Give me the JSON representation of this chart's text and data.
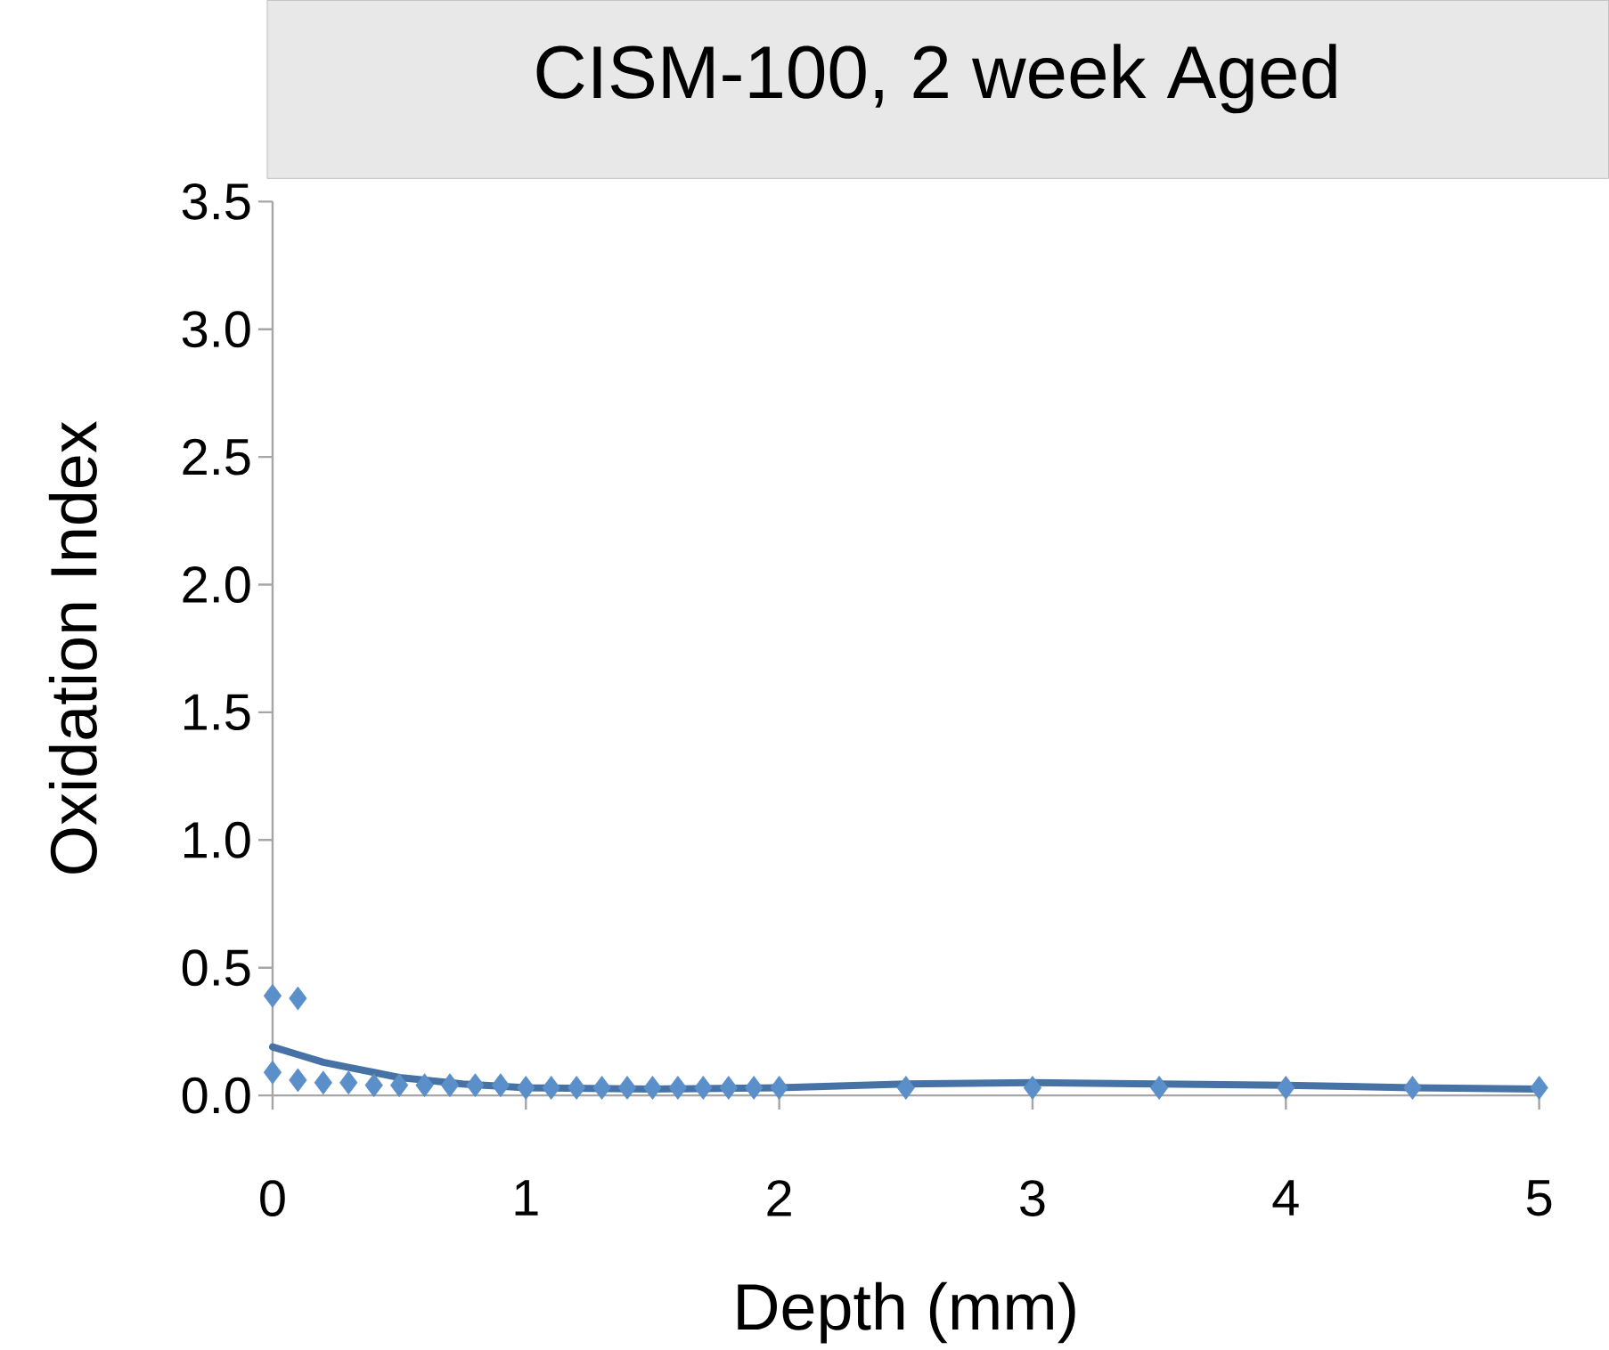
{
  "chart_data": {
    "type": "scatter",
    "title": "CISM-100, 2 week Aged",
    "xlabel": "Depth (mm)",
    "ylabel": "Oxidation Index",
    "xlim": [
      0,
      5
    ],
    "ylim": [
      0,
      3.5
    ],
    "xticks": [
      0,
      1,
      2,
      3,
      4,
      5
    ],
    "yticks": [
      {
        "value": 0,
        "label": "0.0"
      },
      {
        "value": 0.5,
        "label": "0.5"
      },
      {
        "value": 1,
        "label": "1.0"
      },
      {
        "value": 1.5,
        "label": "1.5"
      },
      {
        "value": 2,
        "label": "2.0"
      },
      {
        "value": 2.5,
        "label": "2.5"
      },
      {
        "value": 3,
        "label": "3.0"
      },
      {
        "value": 3.5,
        "label": "3.5"
      }
    ],
    "grid": false,
    "series": [
      {
        "marker": "diamond",
        "color": "#5b8fca",
        "x": [
          0,
          0,
          0.1,
          0.1,
          0.2,
          0.3,
          0.4,
          0.5,
          0.6,
          0.7,
          0.8,
          0.9,
          1.0,
          1.1,
          1.2,
          1.3,
          1.4,
          1.5,
          1.6,
          1.7,
          1.8,
          1.9,
          2.0,
          2.5,
          3.0,
          3.5,
          4.0,
          4.5,
          5.0
        ],
        "values": [
          0.39,
          0.09,
          0.38,
          0.06,
          0.05,
          0.05,
          0.04,
          0.04,
          0.04,
          0.04,
          0.04,
          0.04,
          0.03,
          0.03,
          0.03,
          0.03,
          0.03,
          0.03,
          0.03,
          0.03,
          0.03,
          0.03,
          0.03,
          0.03,
          0.03,
          0.03,
          0.03,
          0.03,
          0.03
        ]
      },
      {
        "type": "line",
        "marker": "none",
        "color": "#4672a5",
        "x": [
          0,
          0.1,
          0.2,
          0.3,
          0.4,
          0.5,
          0.75,
          1,
          1.5,
          2,
          2.5,
          3,
          3.5,
          4,
          4.5,
          5
        ],
        "values": [
          0.19,
          0.16,
          0.13,
          0.11,
          0.09,
          0.07,
          0.045,
          0.03,
          0.025,
          0.03,
          0.045,
          0.05,
          0.045,
          0.04,
          0.03,
          0.025
        ]
      }
    ]
  }
}
